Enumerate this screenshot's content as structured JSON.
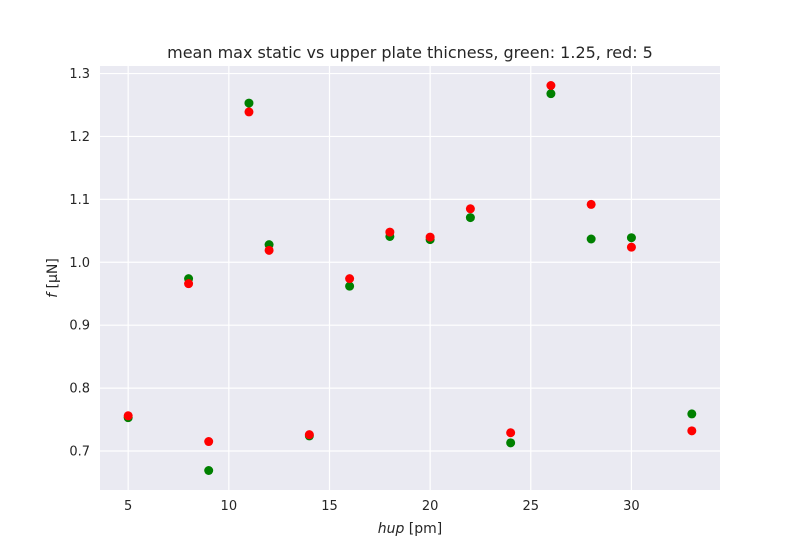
{
  "chart_data": {
    "type": "scatter",
    "title": "mean max static vs upper plate thicness, green: 1.25, red: 5",
    "xlabel_italic": "hup",
    "xlabel_unit": " [pm]",
    "ylabel_italic": "f",
    "ylabel_unit": " [μN]",
    "xlim": [
      3.6,
      34.4
    ],
    "ylim": [
      0.638,
      1.312
    ],
    "xticks": [
      5,
      10,
      15,
      20,
      25,
      30
    ],
    "yticks": [
      0.7,
      0.8,
      0.9,
      1.0,
      1.1,
      1.2,
      1.3
    ],
    "ytick_labels": [
      "0.7",
      "0.8",
      "0.9",
      "1.0",
      "1.1",
      "1.2",
      "1.3"
    ],
    "grid": true,
    "series": [
      {
        "color": "#008000",
        "x": [
          5,
          8,
          9,
          11,
          12,
          14,
          16,
          18,
          20,
          22,
          24,
          26,
          28,
          30,
          33
        ],
        "y": [
          0.753,
          0.974,
          0.669,
          1.253,
          1.028,
          0.724,
          0.962,
          1.041,
          1.036,
          1.071,
          0.713,
          1.268,
          1.037,
          1.039,
          0.759
        ]
      },
      {
        "color": "#ff0000",
        "x": [
          5,
          8,
          9,
          11,
          12,
          14,
          16,
          18,
          20,
          22,
          24,
          26,
          28,
          30,
          33
        ],
        "y": [
          0.756,
          0.966,
          0.715,
          1.239,
          1.019,
          0.726,
          0.974,
          1.048,
          1.04,
          1.085,
          0.729,
          1.281,
          1.092,
          1.024,
          0.732
        ]
      }
    ]
  }
}
